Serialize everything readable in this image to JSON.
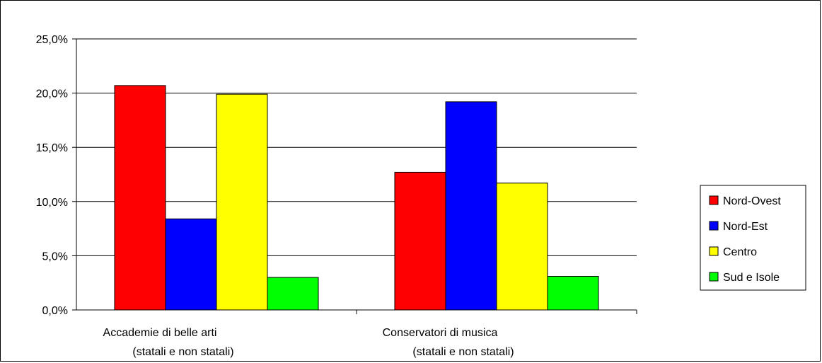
{
  "chart_data": {
    "type": "bar",
    "categories": [
      [
        "Accademie di belle arti",
        "(statali e non statali)"
      ],
      [
        "Conservatori di musica",
        "(statali e non statali)"
      ]
    ],
    "series": [
      {
        "name": "Nord-Ovest",
        "color": "#ff0000",
        "values": [
          20.7,
          12.7
        ]
      },
      {
        "name": "Nord-Est",
        "color": "#0000ff",
        "values": [
          8.4,
          19.2
        ]
      },
      {
        "name": "Centro",
        "color": "#ffff00",
        "values": [
          19.9,
          11.7
        ]
      },
      {
        "name": "Sud e Isole",
        "color": "#00ff00",
        "values": [
          3.0,
          3.1
        ]
      }
    ],
    "ylim": [
      0,
      25
    ],
    "yticks": [
      "0,0%",
      "5,0%",
      "10,0%",
      "15,0%",
      "20,0%",
      "25,0%"
    ],
    "ytick_values": [
      0,
      5,
      10,
      15,
      20,
      25
    ],
    "grid": true,
    "legend_position": "right",
    "title": "",
    "xlabel": "",
    "ylabel": ""
  }
}
